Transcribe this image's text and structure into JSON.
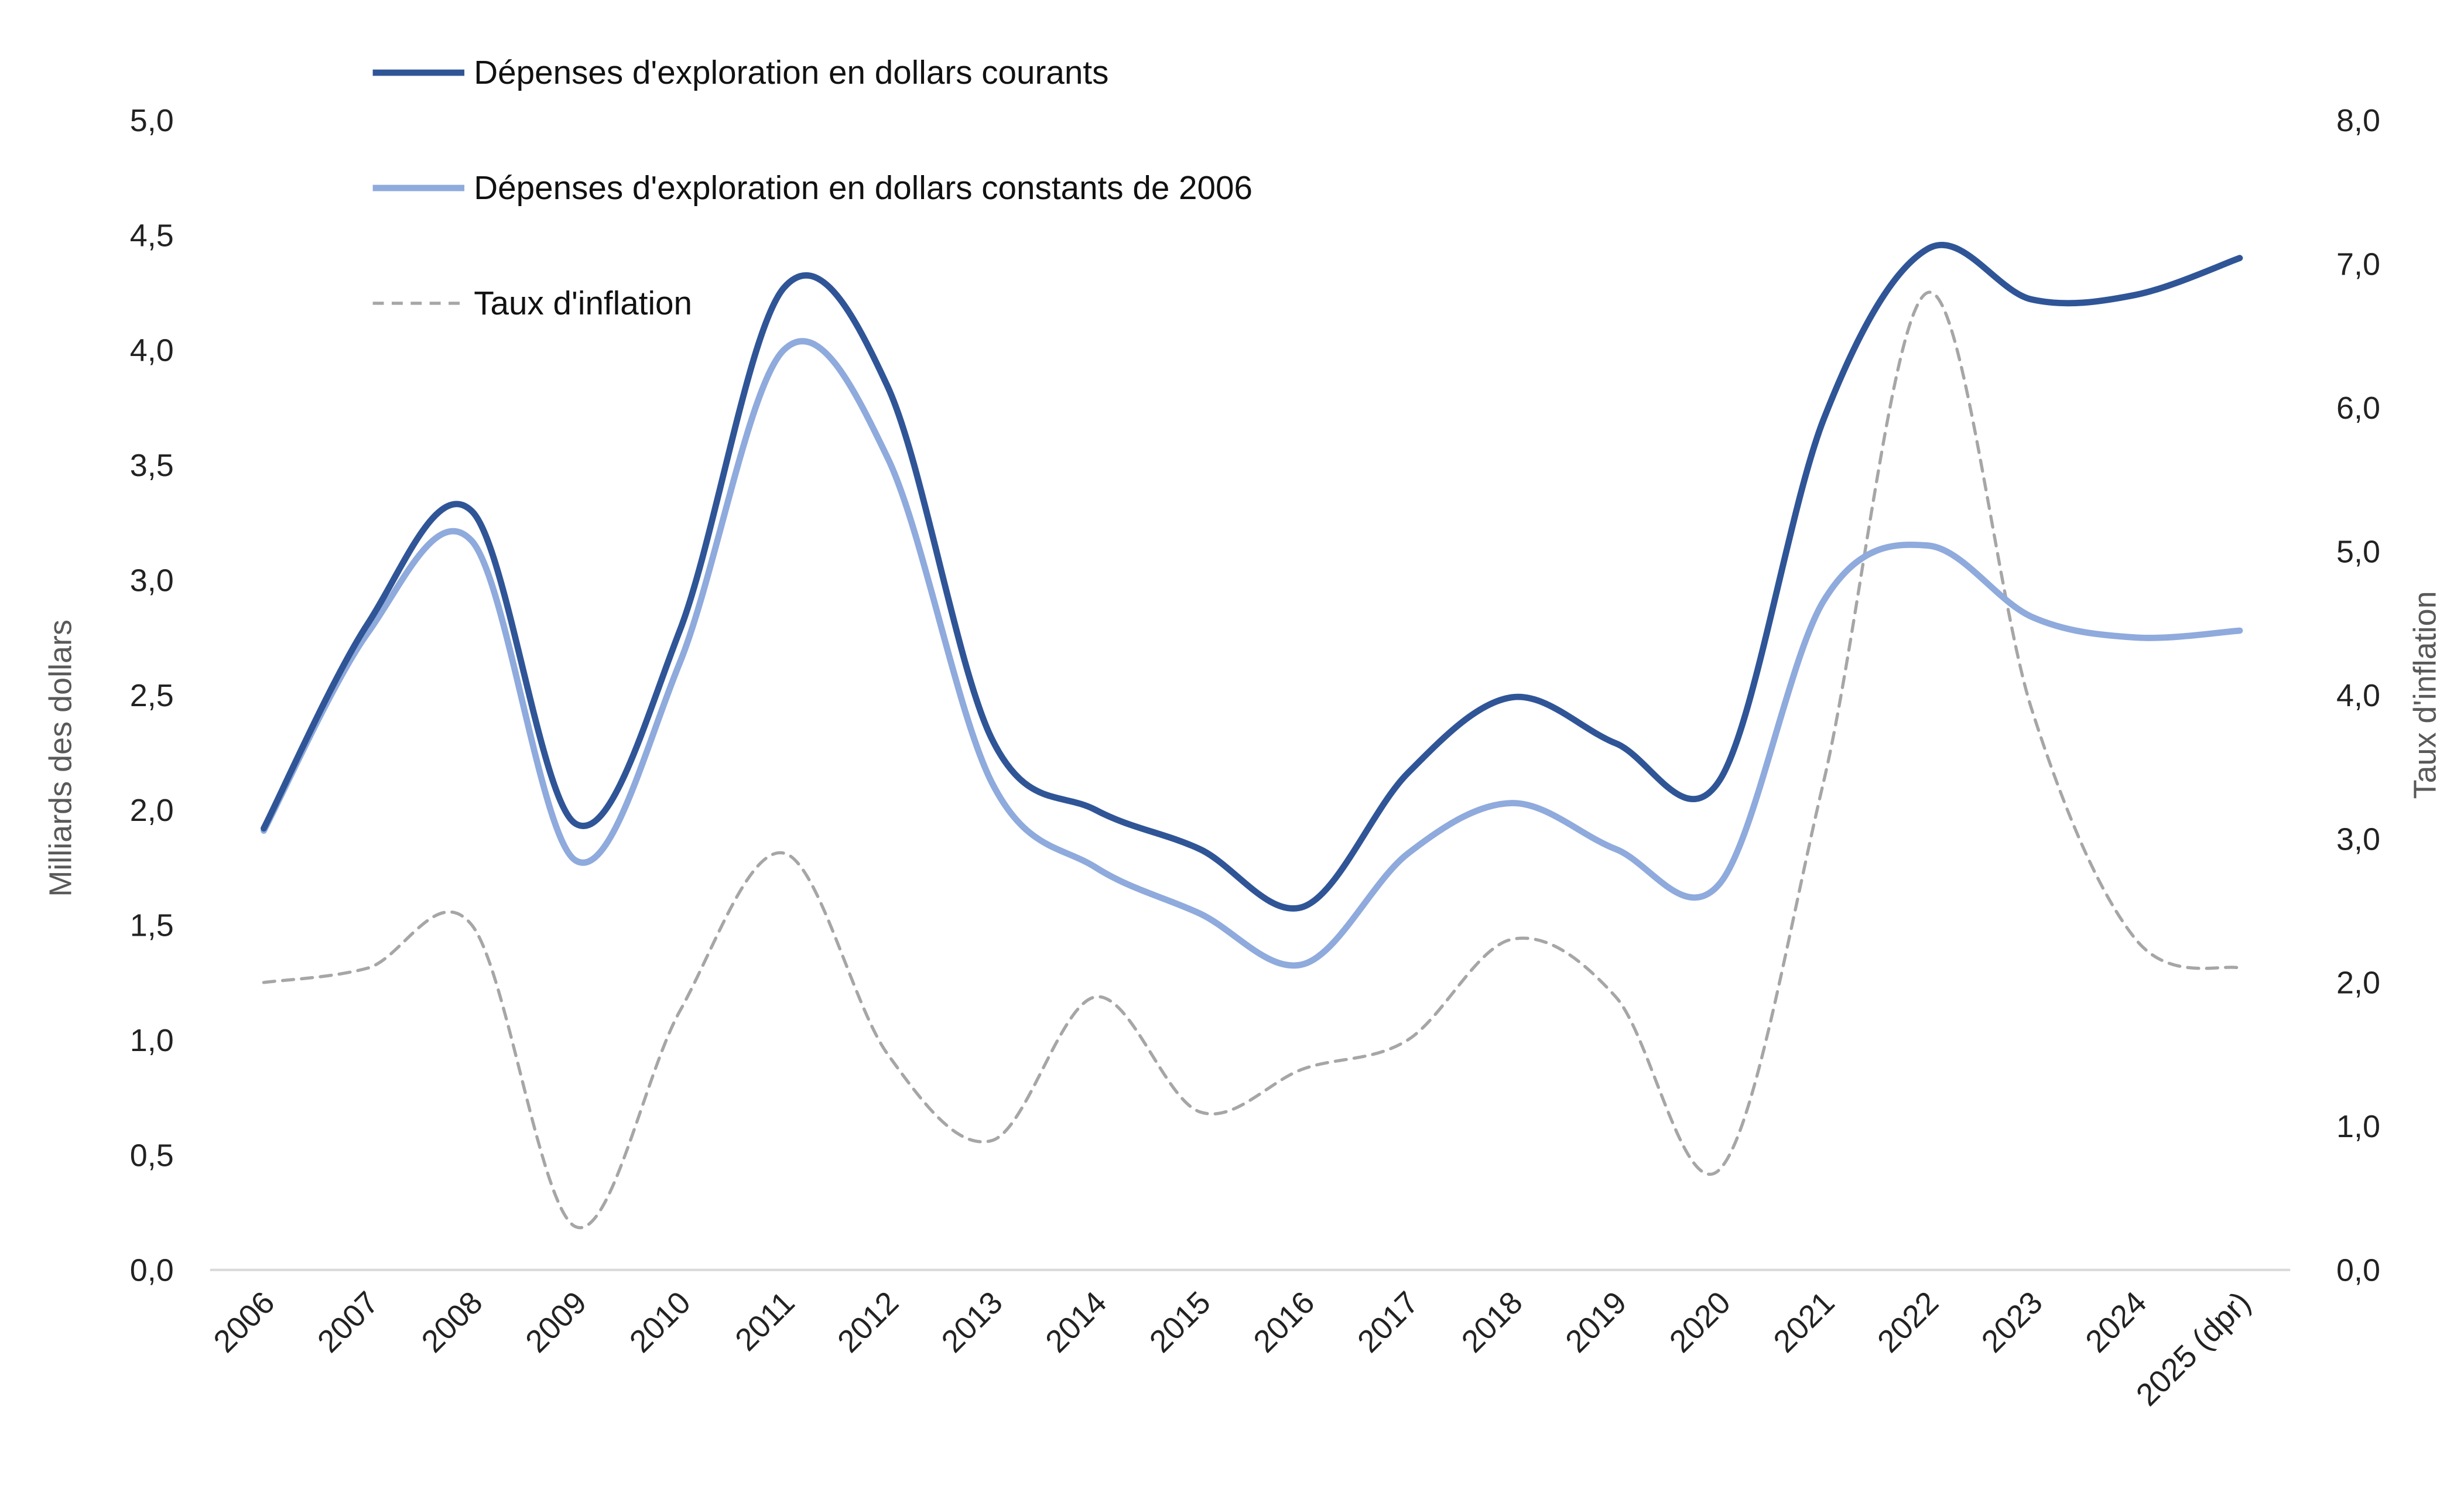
{
  "chart_data": {
    "type": "line",
    "title": "",
    "categories": [
      "2006",
      "2007",
      "2008",
      "2009",
      "2010",
      "2011",
      "2012",
      "2013",
      "2014",
      "2015",
      "2016",
      "2017",
      "2018",
      "2019",
      "2020",
      "2021",
      "2022",
      "2023",
      "2024",
      "2025 (dpr)"
    ],
    "ylabel": "Milliards des dollars",
    "y2label": "Taux d'inflation",
    "ylim": [
      0,
      5
    ],
    "y2lim": [
      0,
      8
    ],
    "yticks": [
      "0,0",
      "0,5",
      "1,0",
      "1,5",
      "2,0",
      "2,5",
      "3,0",
      "3,5",
      "4,0",
      "4,5",
      "5,0"
    ],
    "y2ticks": [
      "0,0",
      "1,0",
      "2,0",
      "3,0",
      "4,0",
      "5,0",
      "6,0",
      "7,0",
      "8,0"
    ],
    "grid": false,
    "legend_position": "top-left",
    "series": [
      {
        "name": "Dépenses d'exploration en dollars courants",
        "axis": "left",
        "color": "#2F5597",
        "style": "solid",
        "values": [
          1.92,
          2.81,
          3.3,
          1.94,
          2.78,
          4.27,
          3.84,
          2.31,
          2.0,
          1.83,
          1.58,
          2.16,
          2.49,
          2.29,
          2.13,
          3.7,
          4.44,
          4.22,
          4.24,
          4.4
        ]
      },
      {
        "name": "Dépenses d'exploration en dollars constants de 2006",
        "axis": "left",
        "color": "#8FAADC",
        "style": "solid",
        "values": [
          1.91,
          2.77,
          3.17,
          1.78,
          2.64,
          4.0,
          3.53,
          2.12,
          1.75,
          1.55,
          1.33,
          1.81,
          2.03,
          1.83,
          1.68,
          2.91,
          3.15,
          2.84,
          2.75,
          2.78
        ]
      },
      {
        "name": "Taux d'inflation",
        "axis": "right",
        "color": "#A6A6A6",
        "style": "dashed",
        "values": [
          2.0,
          2.1,
          2.4,
          0.3,
          1.8,
          2.9,
          1.5,
          0.9,
          1.9,
          1.1,
          1.4,
          1.6,
          2.3,
          1.9,
          0.7,
          3.4,
          6.8,
          3.9,
          2.3,
          2.1
        ]
      }
    ]
  }
}
